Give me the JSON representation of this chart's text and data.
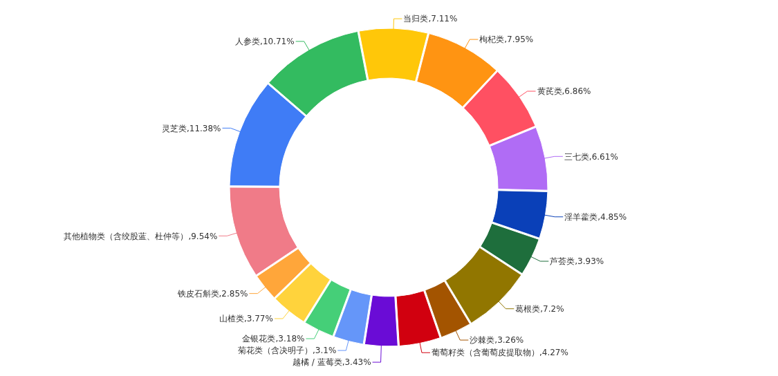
{
  "chart_data": {
    "type": "donut",
    "categories": [
      "当归类",
      "枸杞类",
      "黄芪类",
      "三七类",
      "淫羊藿类",
      "芦荟类",
      "葛根类",
      "沙棘类",
      "葡萄籽类（含葡萄皮提取物）",
      "越橘 / 蓝莓类",
      "菊花类（含决明子）",
      "金银花类",
      "山楂类",
      "铁皮石斛类",
      "其他植物类（含绞股蓝、杜仲等）",
      "灵芝类",
      "人参类"
    ],
    "values": [
      7.11,
      7.95,
      6.86,
      6.61,
      4.85,
      3.93,
      7.2,
      3.26,
      4.27,
      3.43,
      3.1,
      3.18,
      3.77,
      2.85,
      9.54,
      11.38,
      10.71
    ],
    "value_labels": [
      "7.11%",
      "7.95%",
      "6.86%",
      "6.61%",
      "4.85%",
      "3.93%",
      "7.2%",
      "3.26%",
      "4.27%",
      "3.43%",
      "3.1%",
      "3.18%",
      "3.77%",
      "2.85%",
      "9.54%",
      "11.38%",
      "10.71%"
    ],
    "colors": [
      "#ffc709",
      "#ff9412",
      "#ff5062",
      "#b06cf5",
      "#0a40b8",
      "#1e6e3c",
      "#917600",
      "#a35400",
      "#d1000f",
      "#6a0cd6",
      "#6596f9",
      "#45cf78",
      "#ffd33c",
      "#ffa63a",
      "#f07b88",
      "#3f7cf6",
      "#33bb60"
    ]
  }
}
